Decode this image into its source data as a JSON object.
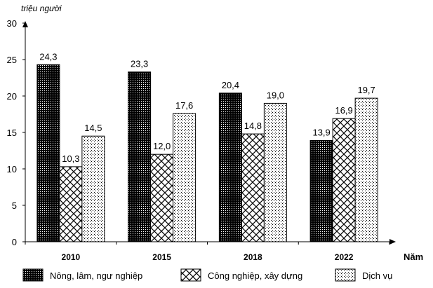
{
  "chart_data": {
    "type": "bar",
    "title": "",
    "ylabel": "triệu người",
    "xlabel": "Năm",
    "categories": [
      "2010",
      "2015",
      "2018",
      "2022"
    ],
    "ylim": [
      0,
      30
    ],
    "yticks": [
      "0",
      "5",
      "10",
      "15",
      "20",
      "25",
      "30"
    ],
    "grid": false,
    "legend_position": "bottom",
    "series": [
      {
        "name": "Nông, lâm, ngư nghiệp",
        "values": [
          24.3,
          23.3,
          20.4,
          13.9
        ],
        "labels": [
          "24,3",
          "23,3",
          "20,4",
          "13,9"
        ],
        "pattern": "dense-dots"
      },
      {
        "name": "Công nghiệp, xây dựng",
        "values": [
          10.3,
          12.0,
          14.8,
          16.9
        ],
        "labels": [
          "10,3",
          "12,0",
          "14,8",
          "16,9"
        ],
        "pattern": "crosshatch"
      },
      {
        "name": "Dịch vụ",
        "values": [
          14.5,
          17.6,
          19.0,
          19.7
        ],
        "labels": [
          "14,5",
          "17,6",
          "19,0",
          "19,7"
        ],
        "pattern": "sparse-dots"
      }
    ]
  }
}
